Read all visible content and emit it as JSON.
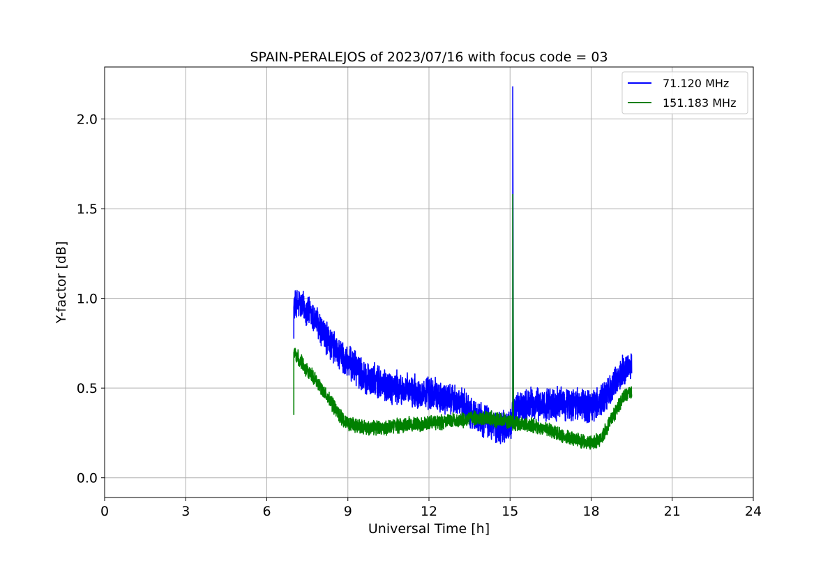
{
  "chart_data": {
    "type": "line",
    "title": "SPAIN-PERALEJOS of 2023/07/16 with focus code = 03",
    "xlabel": "Universal Time [h]",
    "ylabel": "Y-factor [dB]",
    "xlim": [
      0,
      24
    ],
    "ylim": [
      -0.11,
      2.29
    ],
    "xticks": [
      0,
      3,
      6,
      9,
      12,
      15,
      18,
      21,
      24
    ],
    "xtick_labels": [
      "0",
      "3",
      "6",
      "9",
      "12",
      "15",
      "18",
      "21",
      "24"
    ],
    "yticks": [
      0.0,
      0.5,
      1.0,
      1.5,
      2.0
    ],
    "ytick_labels": [
      "0.0",
      "0.5",
      "1.0",
      "1.5",
      "2.0"
    ],
    "grid": true,
    "legend_position": "top-right",
    "series": [
      {
        "name": " 71.120 MHz",
        "color": "#0000ff",
        "spread": 0.08,
        "x": [
          7.0,
          7.2,
          7.5,
          7.8,
          8.0,
          8.3,
          8.5,
          8.8,
          9.0,
          9.3,
          9.5,
          9.8,
          10.0,
          10.3,
          10.5,
          10.8,
          11.0,
          11.3,
          11.5,
          11.8,
          12.0,
          12.3,
          12.5,
          12.8,
          13.0,
          13.3,
          13.5,
          13.8,
          14.0,
          14.3,
          14.5,
          14.8,
          15.0,
          15.1,
          15.2,
          15.5,
          15.8,
          16.0,
          16.3,
          16.5,
          16.8,
          17.0,
          17.3,
          17.5,
          17.8,
          18.0,
          18.3,
          18.5,
          18.8,
          19.0,
          19.2,
          19.5
        ],
        "y": [
          0.95,
          0.97,
          0.93,
          0.88,
          0.82,
          0.76,
          0.72,
          0.67,
          0.64,
          0.61,
          0.58,
          0.55,
          0.54,
          0.52,
          0.51,
          0.5,
          0.49,
          0.48,
          0.48,
          0.47,
          0.47,
          0.46,
          0.45,
          0.44,
          0.43,
          0.4,
          0.37,
          0.34,
          0.32,
          0.3,
          0.28,
          0.28,
          0.3,
          2.18,
          0.38,
          0.4,
          0.41,
          0.41,
          0.41,
          0.41,
          0.41,
          0.41,
          0.41,
          0.41,
          0.4,
          0.4,
          0.42,
          0.45,
          0.5,
          0.55,
          0.6,
          0.63
        ]
      },
      {
        "name": "151.183 MHz",
        "color": "#008000",
        "spread": 0.035,
        "x": [
          7.0,
          7.2,
          7.5,
          7.8,
          8.0,
          8.3,
          8.5,
          8.8,
          9.0,
          9.3,
          9.5,
          9.8,
          10.0,
          10.3,
          10.5,
          10.8,
          11.0,
          11.3,
          11.5,
          11.8,
          12.0,
          12.3,
          12.5,
          12.8,
          13.0,
          13.3,
          13.5,
          13.8,
          14.0,
          14.3,
          14.5,
          14.8,
          15.0,
          15.1,
          15.2,
          15.5,
          15.8,
          16.0,
          16.3,
          16.5,
          16.8,
          17.0,
          17.3,
          17.5,
          17.8,
          18.0,
          18.3,
          18.5,
          18.8,
          19.0,
          19.2,
          19.5
        ],
        "y": [
          0.7,
          0.66,
          0.6,
          0.55,
          0.5,
          0.44,
          0.39,
          0.33,
          0.3,
          0.29,
          0.28,
          0.28,
          0.28,
          0.28,
          0.28,
          0.29,
          0.29,
          0.3,
          0.3,
          0.3,
          0.31,
          0.31,
          0.31,
          0.32,
          0.32,
          0.32,
          0.33,
          0.33,
          0.33,
          0.33,
          0.32,
          0.32,
          0.31,
          1.58,
          0.3,
          0.3,
          0.29,
          0.28,
          0.27,
          0.26,
          0.25,
          0.23,
          0.22,
          0.21,
          0.2,
          0.19,
          0.21,
          0.26,
          0.34,
          0.4,
          0.45,
          0.48
        ]
      }
    ]
  }
}
